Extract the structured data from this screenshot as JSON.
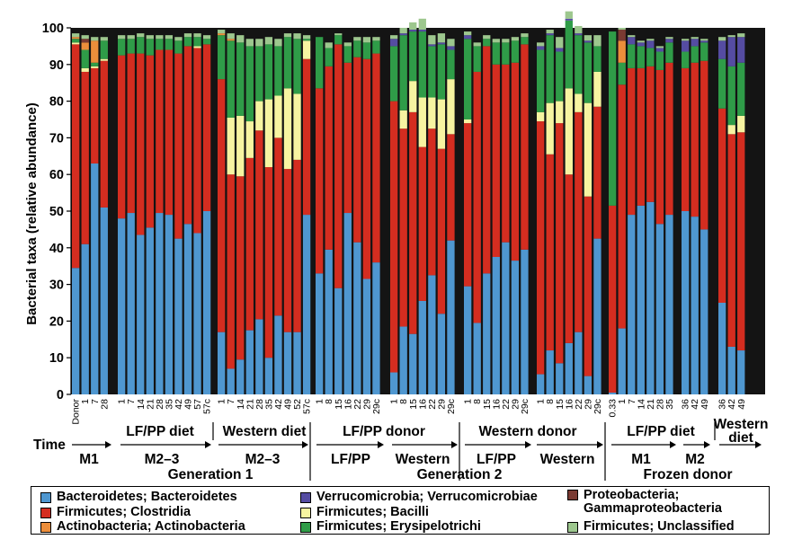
{
  "chart_data": {
    "type": "bar",
    "stacked": true,
    "ylabel": "Bacterial taxa (relative abundance)",
    "ylim": [
      0,
      100
    ],
    "yticks": [
      0,
      10,
      20,
      30,
      40,
      50,
      60,
      70,
      80,
      90,
      100
    ],
    "time_label": "Time",
    "generation_labels": [
      "Generation 1",
      "Generation 2"
    ],
    "series": [
      {
        "key": "bact",
        "name": "Bacteroidetes; Bacteroidetes",
        "color": "#4f97d0"
      },
      {
        "key": "clos",
        "name": "Firmicutes; Clostridia",
        "color": "#d42d20"
      },
      {
        "key": "erys",
        "name": "Firmicutes; Erysipelotrichi",
        "color": "#2f9c48"
      },
      {
        "key": "baci",
        "name": "Firmicutes; Bacilli",
        "color": "#f7f4a1"
      },
      {
        "key": "verr",
        "name": "Verrucomicrobia; Verrucomicrobiae",
        "color": "#554ca2"
      },
      {
        "key": "acti",
        "name": "Actinobacteria; Actinobacteria",
        "color": "#ec8e3b"
      },
      {
        "key": "prot",
        "name": "Proteobacteria; Gammaproteobacteria",
        "color": "#7a3a32"
      },
      {
        "key": "uncl",
        "name": "Firmicutes; Unclassified",
        "color": "#9dc78e"
      }
    ],
    "groups": [
      {
        "header": "",
        "period": "M1",
        "bars": [
          {
            "x": "Donor",
            "bact": 34.5,
            "clos": 61,
            "erys": 1,
            "baci": 0.5,
            "verr": 0,
            "acti": 0.5,
            "prot": 0,
            "uncl": 1
          },
          {
            "x": "1",
            "bact": 41,
            "clos": 47,
            "erys": 5,
            "baci": 1,
            "verr": 0,
            "acti": 2,
            "prot": 1,
            "uncl": 1
          },
          {
            "x": "7",
            "bact": 63,
            "clos": 26,
            "erys": 1,
            "baci": 0.5,
            "verr": 0,
            "acti": 6,
            "prot": 0,
            "uncl": 1
          },
          {
            "x": "28",
            "bact": 51,
            "clos": 40,
            "erys": 5,
            "baci": 0.5,
            "verr": 0,
            "acti": 0,
            "prot": 0,
            "uncl": 1
          }
        ]
      },
      {
        "header": "LF/PP diet",
        "period": "M2–3",
        "bars": [
          {
            "x": "1",
            "bact": 48,
            "clos": 44.5,
            "erys": 4.5,
            "baci": 0,
            "verr": 0,
            "acti": 0,
            "prot": 0,
            "uncl": 1
          },
          {
            "x": "7",
            "bact": 49.5,
            "clos": 43.5,
            "erys": 4,
            "baci": 0,
            "verr": 0,
            "acti": 0,
            "prot": 0,
            "uncl": 1
          },
          {
            "x": "14",
            "bact": 43.5,
            "clos": 49.5,
            "erys": 4.5,
            "baci": 0,
            "verr": 0,
            "acti": 0,
            "prot": 0,
            "uncl": 1
          },
          {
            "x": "21",
            "bact": 45.5,
            "clos": 47,
            "erys": 4.5,
            "baci": 0,
            "verr": 0,
            "acti": 0,
            "prot": 0,
            "uncl": 1
          },
          {
            "x": "28",
            "bact": 49.5,
            "clos": 44.5,
            "erys": 3,
            "baci": 0,
            "verr": 0,
            "acti": 0,
            "prot": 0,
            "uncl": 1
          },
          {
            "x": "35",
            "bact": 49,
            "clos": 45,
            "erys": 3,
            "baci": 0,
            "verr": 0,
            "acti": 0,
            "prot": 0,
            "uncl": 1
          },
          {
            "x": "42",
            "bact": 42.5,
            "clos": 50.5,
            "erys": 3.5,
            "baci": 0,
            "verr": 0,
            "acti": 0,
            "prot": 0,
            "uncl": 1
          },
          {
            "x": "49",
            "bact": 46.5,
            "clos": 48.5,
            "erys": 2.5,
            "baci": 0,
            "verr": 0,
            "acti": 0,
            "prot": 0,
            "uncl": 1
          },
          {
            "x": "57",
            "bact": 44,
            "clos": 50.5,
            "erys": 2.5,
            "baci": 0.5,
            "verr": 0,
            "acti": 0,
            "prot": 0,
            "uncl": 1
          },
          {
            "x": "57c",
            "bact": 50,
            "clos": 45.5,
            "erys": 1.5,
            "baci": 0,
            "verr": 0,
            "acti": 0,
            "prot": 0,
            "uncl": 1
          }
        ]
      },
      {
        "header": "Western diet",
        "period": "M2–3",
        "bars": [
          {
            "x": "1",
            "bact": 17,
            "clos": 69,
            "erys": 12,
            "baci": 0,
            "verr": 0,
            "acti": 0.5,
            "prot": 0,
            "uncl": 1
          },
          {
            "x": "7",
            "bact": 7,
            "clos": 53,
            "erys": 21,
            "baci": 15.5,
            "verr": 0,
            "acti": 0.5,
            "prot": 0,
            "uncl": 1.5
          },
          {
            "x": "14",
            "bact": 9.5,
            "clos": 50,
            "erys": 20,
            "baci": 16.5,
            "verr": 0,
            "acti": 0,
            "prot": 0,
            "uncl": 2
          },
          {
            "x": "21",
            "bact": 17.5,
            "clos": 47,
            "erys": 20.5,
            "baci": 10,
            "verr": 0,
            "acti": 0,
            "prot": 0,
            "uncl": 2
          },
          {
            "x": "28",
            "bact": 20.5,
            "clos": 51.5,
            "erys": 15,
            "baci": 8,
            "verr": 0,
            "acti": 0,
            "prot": 0,
            "uncl": 2
          },
          {
            "x": "35",
            "bact": 10,
            "clos": 52,
            "erys": 15,
            "baci": 18.5,
            "verr": 0,
            "acti": 0,
            "prot": 0,
            "uncl": 2
          },
          {
            "x": "42",
            "bact": 21.5,
            "clos": 48.5,
            "erys": 13.5,
            "baci": 11.5,
            "verr": 0,
            "acti": 0,
            "prot": 0,
            "uncl": 2
          },
          {
            "x": "49",
            "bact": 17,
            "clos": 44.5,
            "erys": 14,
            "baci": 22,
            "verr": 0,
            "acti": 0,
            "prot": 0,
            "uncl": 1
          },
          {
            "x": "52",
            "bact": 17,
            "clos": 47,
            "erys": 15,
            "baci": 18,
            "verr": 0,
            "acti": 0,
            "prot": 0,
            "uncl": 1.5
          },
          {
            "x": "57c",
            "bact": 49,
            "clos": 42.5,
            "erys": 0.5,
            "baci": 5,
            "verr": 0,
            "acti": 0,
            "prot": 0,
            "uncl": 1
          }
        ]
      },
      {
        "header": "LF/PP donor",
        "period": "LF/PP",
        "bars": [
          {
            "x": "1",
            "bact": 33,
            "clos": 50.5,
            "erys": 14,
            "baci": 0,
            "verr": 0,
            "acti": 0,
            "prot": 0,
            "uncl": 0
          },
          {
            "x": "8",
            "bact": 39.5,
            "clos": 50,
            "erys": 5,
            "baci": 0,
            "verr": 0,
            "acti": 0,
            "prot": 0,
            "uncl": 1.5
          },
          {
            "x": "15",
            "bact": 29,
            "clos": 66.5,
            "erys": 2.5,
            "baci": 0,
            "verr": 0,
            "acti": 0,
            "prot": 0,
            "uncl": 0.5
          },
          {
            "x": "16",
            "bact": 49.5,
            "clos": 41,
            "erys": 4.5,
            "baci": 0,
            "verr": 0,
            "acti": 0,
            "prot": 0,
            "uncl": 1
          },
          {
            "x": "22",
            "bact": 41.5,
            "clos": 50.5,
            "erys": 4.5,
            "baci": 0,
            "verr": 0,
            "acti": 0,
            "prot": 0,
            "uncl": 1
          },
          {
            "x": "29",
            "bact": 31.5,
            "clos": 60,
            "erys": 4.5,
            "baci": 0,
            "verr": 0,
            "acti": 0,
            "prot": 0,
            "uncl": 1.5
          },
          {
            "x": "29c",
            "bact": 36,
            "clos": 57,
            "erys": 3.5,
            "baci": 0,
            "verr": 0,
            "acti": 0,
            "prot": 0,
            "uncl": 1
          }
        ]
      },
      {
        "header": "",
        "period": "Western",
        "bars": [
          {
            "x": "1",
            "bact": 6,
            "clos": 74,
            "erys": 15,
            "baci": 0,
            "verr": 2,
            "acti": 0,
            "prot": 0,
            "uncl": 1
          },
          {
            "x": "8",
            "bact": 18.5,
            "clos": 54,
            "erys": 20.5,
            "baci": 5,
            "verr": 0.5,
            "acti": 0,
            "prot": 0,
            "uncl": 1.5
          },
          {
            "x": "15",
            "bact": 16.5,
            "clos": 60.5,
            "erys": 13.5,
            "baci": 8.5,
            "verr": 0.5,
            "acti": 0,
            "prot": 0,
            "uncl": 2
          },
          {
            "x": "16",
            "bact": 25.5,
            "clos": 42,
            "erys": 18,
            "baci": 13.5,
            "verr": 0.5,
            "acti": 0,
            "prot": 0,
            "uncl": 3
          },
          {
            "x": "22",
            "bact": 32.5,
            "clos": 40,
            "erys": 14,
            "baci": 8.5,
            "verr": 0.5,
            "acti": 0,
            "prot": 0,
            "uncl": 2.5
          },
          {
            "x": "29",
            "bact": 22,
            "clos": 45,
            "erys": 15,
            "baci": 13.5,
            "verr": 0.5,
            "acti": 0,
            "prot": 0,
            "uncl": 2.5
          },
          {
            "x": "29c",
            "bact": 42,
            "clos": 29,
            "erys": 8,
            "baci": 15,
            "verr": 1,
            "acti": 0,
            "prot": 0,
            "uncl": 2
          }
        ]
      },
      {
        "header": "",
        "period": "LF/PP",
        "bars": [
          {
            "x": "1",
            "bact": 29.5,
            "clos": 44.5,
            "erys": 22,
            "baci": 1,
            "verr": 1,
            "acti": 0,
            "prot": 0,
            "uncl": 1
          },
          {
            "x": "8",
            "bact": 19.5,
            "clos": 68.5,
            "erys": 7,
            "baci": 0,
            "verr": 0,
            "acti": 0,
            "prot": 0,
            "uncl": 1
          },
          {
            "x": "15",
            "bact": 33,
            "clos": 62,
            "erys": 2,
            "baci": 0,
            "verr": 0,
            "acti": 0,
            "prot": 0,
            "uncl": 1
          },
          {
            "x": "16",
            "bact": 37.5,
            "clos": 52.5,
            "erys": 6,
            "baci": 0,
            "verr": 0,
            "acti": 0,
            "prot": 0,
            "uncl": 1
          },
          {
            "x": "22",
            "bact": 41.5,
            "clos": 48.5,
            "erys": 6,
            "baci": 0,
            "verr": 0,
            "acti": 0,
            "prot": 0,
            "uncl": 1
          },
          {
            "x": "29",
            "bact": 36.5,
            "clos": 54,
            "erys": 6,
            "baci": 0,
            "verr": 0,
            "acti": 0,
            "prot": 0,
            "uncl": 1
          },
          {
            "x": "29c",
            "bact": 39.5,
            "clos": 56,
            "erys": 2,
            "baci": 0,
            "verr": 0,
            "acti": 0,
            "prot": 0,
            "uncl": 1
          }
        ]
      },
      {
        "header": "Western donor",
        "period": "Western",
        "bars": [
          {
            "x": "1",
            "bact": 5.5,
            "clos": 69,
            "erys": 17,
            "baci": 2.5,
            "verr": 1,
            "acti": 0,
            "prot": 0,
            "uncl": 1
          },
          {
            "x": "8",
            "bact": 12,
            "clos": 53.5,
            "erys": 18.5,
            "baci": 14,
            "verr": 0.5,
            "acti": 0,
            "prot": 0,
            "uncl": 1
          },
          {
            "x": "15",
            "bact": 8.5,
            "clos": 65.5,
            "erys": 13.5,
            "baci": 6,
            "verr": 1,
            "acti": 0,
            "prot": 0,
            "uncl": 3
          },
          {
            "x": "16",
            "bact": 14,
            "clos": 46,
            "erys": 18.5,
            "baci": 23.5,
            "verr": 0.5,
            "acti": 0,
            "prot": 0,
            "uncl": 2
          },
          {
            "x": "22",
            "bact": 17,
            "clos": 60,
            "erys": 16,
            "baci": 5,
            "verr": 0.5,
            "acti": 0,
            "prot": 0,
            "uncl": 2
          },
          {
            "x": "29",
            "bact": 5,
            "clos": 49,
            "erys": 16.5,
            "baci": 25.5,
            "verr": 0.5,
            "acti": 0,
            "prot": 0,
            "uncl": 1.5
          },
          {
            "x": "29c",
            "bact": 42.5,
            "clos": 36,
            "erys": 7,
            "baci": 9.5,
            "verr": 0,
            "acti": 0,
            "prot": 0,
            "uncl": 3
          }
        ]
      },
      {
        "header": "LF/PP diet",
        "period": "M1",
        "bars": [
          {
            "x": "0.33",
            "bact": 0.5,
            "clos": 51,
            "erys": 47.5,
            "baci": 0,
            "verr": 0,
            "acti": 0,
            "prot": 0,
            "uncl": 0
          },
          {
            "x": "1",
            "bact": 18,
            "clos": 66.5,
            "erys": 6,
            "baci": 0,
            "verr": 0,
            "acti": 6,
            "prot": 3,
            "uncl": 0.5
          },
          {
            "x": "7",
            "bact": 49,
            "clos": 40,
            "erys": 6.5,
            "baci": 0,
            "verr": 2,
            "acti": 0,
            "prot": 0,
            "uncl": 0.5
          },
          {
            "x": "14",
            "bact": 51.5,
            "clos": 37.5,
            "erys": 6,
            "baci": 0,
            "verr": 1,
            "acti": 0,
            "prot": 0,
            "uncl": 0.5
          },
          {
            "x": "21",
            "bact": 52.5,
            "clos": 37,
            "erys": 5,
            "baci": 0,
            "verr": 2,
            "acti": 0,
            "prot": 0,
            "uncl": 0.5
          },
          {
            "x": "28",
            "bact": 46.5,
            "clos": 42,
            "erys": 5,
            "baci": 0,
            "verr": 1,
            "acti": 0,
            "prot": 0,
            "uncl": 0.5
          },
          {
            "x": "35",
            "bact": 49,
            "clos": 41.5,
            "erys": 5.5,
            "baci": 0,
            "verr": 1,
            "acti": 0,
            "prot": 0,
            "uncl": 0.5
          }
        ]
      },
      {
        "header": "",
        "period": "M2",
        "bars": [
          {
            "x": "36",
            "bact": 50,
            "clos": 39,
            "erys": 4.5,
            "baci": 0,
            "verr": 3,
            "acti": 0,
            "prot": 0,
            "uncl": 0.5
          },
          {
            "x": "42",
            "bact": 48.5,
            "clos": 42,
            "erys": 4.5,
            "baci": 0,
            "verr": 2,
            "acti": 0,
            "prot": 0,
            "uncl": 0.5
          },
          {
            "x": "49",
            "bact": 45,
            "clos": 46,
            "erys": 5,
            "baci": 0,
            "verr": 0.5,
            "acti": 0,
            "prot": 0,
            "uncl": 0.5
          }
        ]
      },
      {
        "header": "Western diet",
        "period": "",
        "bars": [
          {
            "x": "36",
            "bact": 25,
            "clos": 53,
            "erys": 13.5,
            "baci": 0,
            "verr": 5,
            "acti": 0,
            "prot": 0,
            "uncl": 1
          },
          {
            "x": "42",
            "bact": 13,
            "clos": 58,
            "erys": 16,
            "baci": 2.5,
            "verr": 8,
            "acti": 0,
            "prot": 0,
            "uncl": 0.5
          },
          {
            "x": "49",
            "bact": 12,
            "clos": 59.5,
            "erys": 14.5,
            "baci": 4.5,
            "verr": 7,
            "acti": 0,
            "prot": 0,
            "uncl": 1
          }
        ]
      }
    ]
  },
  "annotations": {
    "header_lfpp_diet_1": "LF/PP diet",
    "header_western_diet_1": "Western diet",
    "header_lfpp_donor": "LF/PP donor",
    "header_western_donor": "Western donor",
    "header_lfpp_diet_fz": "LF/PP diet",
    "header_western_diet_fz_1": "Western",
    "header_western_diet_fz_2": "diet",
    "time": "Time",
    "m1": "M1",
    "m23_a": "M2–3",
    "m23_b": "M2–3",
    "lfpp_a": "LF/PP",
    "western_a": "Western",
    "lfpp_b": "LF/PP",
    "western_b": "Western",
    "m1_fz": "M1",
    "m2_fz": "M2",
    "gen1": "Generation 1",
    "gen2": "Generation 2",
    "frozen": "Frozen donor"
  },
  "legend": {
    "items": [
      {
        "label": "Bacteroidetes; Bacteroidetes",
        "color": "#4f97d0"
      },
      {
        "label": "Firmicutes; Clostridia",
        "color": "#d42d20"
      },
      {
        "label": "Actinobacteria; Actinobacteria",
        "color": "#ec8e3b"
      },
      {
        "label": "Verrucomicrobia; Verrucomicrobiae",
        "color": "#554ca2"
      },
      {
        "label": "Firmicutes; Bacilli",
        "color": "#f7f4a1"
      },
      {
        "label": "Firmicutes; Erysipelotrichi",
        "color": "#2f9c48"
      },
      {
        "label": "Proteobacteria;",
        "label2": "Gammaproteobacteria",
        "color": "#7a3a32"
      },
      {
        "label": "Firmicutes; Unclassified",
        "color": "#9dc78e"
      }
    ]
  }
}
